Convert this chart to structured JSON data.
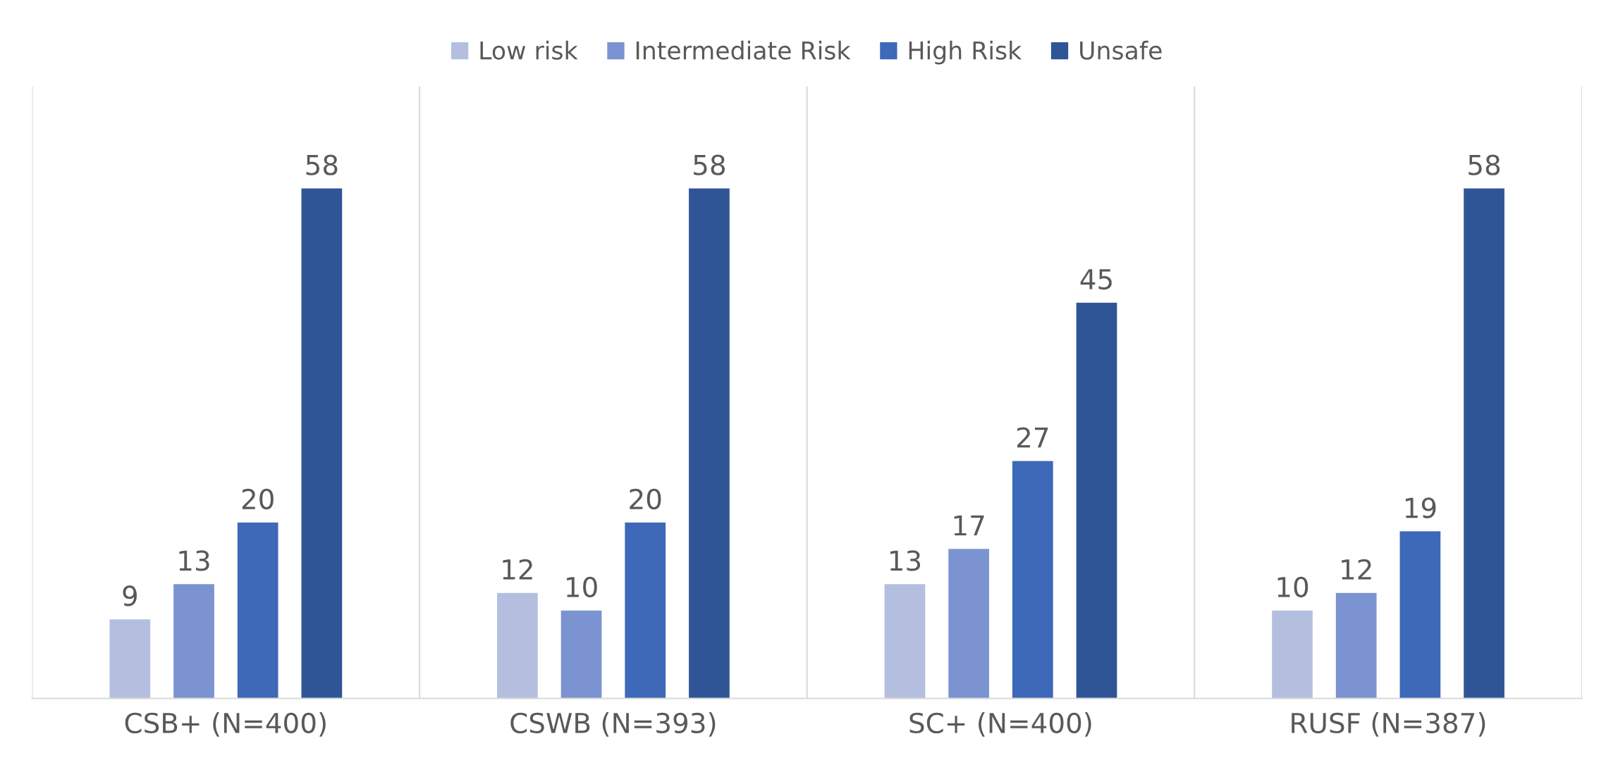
{
  "chart_data": {
    "type": "bar",
    "categories": [
      "CSB+ (N=400)",
      "CSWB (N=393)",
      "SC+ (N=400)",
      "RUSF (N=387)"
    ],
    "series": [
      {
        "name": "Low risk",
        "color": "#b4bfe0",
        "values": [
          9,
          12,
          13,
          10
        ]
      },
      {
        "name": "Intermediate Risk",
        "color": "#7b93d1",
        "values": [
          13,
          10,
          17,
          12
        ]
      },
      {
        "name": "High Risk",
        "color": "#3e68b8",
        "values": [
          20,
          20,
          27,
          19
        ]
      },
      {
        "name": "Unsafe",
        "color": "#2f5597",
        "values": [
          58,
          58,
          45,
          58
        ]
      }
    ],
    "data_labels": true,
    "grid": "x",
    "legend": "top",
    "tick_labels": "x"
  }
}
